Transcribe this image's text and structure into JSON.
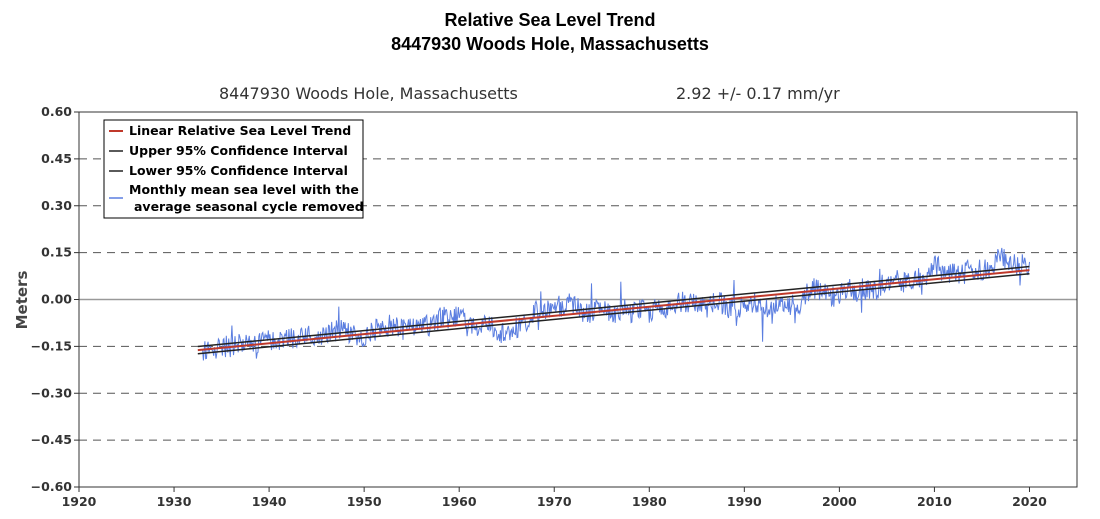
{
  "page_title_line1": "Relative Sea Level Trend",
  "page_title_line2": "8447930 Woods Hole, Massachusetts",
  "colors": {
    "trend": "#c0392b",
    "ci": "#222222",
    "monthly": "#5b7ee0",
    "zero": "#999999",
    "grid": "#555555"
  },
  "chart_data": {
    "type": "line",
    "subtitle_station": "8447930 Woods Hole, Massachusetts",
    "subtitle_rate": "2.92 +/-  0.17 mm/yr",
    "ylabel": "Meters",
    "xlabel": "",
    "xlim": [
      1920,
      2025
    ],
    "ylim": [
      -0.6,
      0.6
    ],
    "x_ticks": [
      "1920",
      "1930",
      "1940",
      "1950",
      "1960",
      "1970",
      "1980",
      "1990",
      "2000",
      "2010",
      "2020"
    ],
    "y_ticks": [
      "0.60",
      "0.45",
      "0.30",
      "0.15",
      "0.00",
      "-0.15",
      "-0.30",
      "-0.45",
      "-0.60"
    ],
    "grid": "dashed horizontal",
    "legend_position": "top-left",
    "legend": [
      "Linear Relative Sea Level Trend",
      "Upper 95% Confidence Interval",
      "Lower 95% Confidence Interval",
      "Monthly mean sea level with the",
      "average seasonal cycle removed"
    ],
    "trend": {
      "start_year": 1932.5,
      "end_year": 2020.0,
      "start_value": -0.162,
      "end_value": 0.094,
      "rate_mm_per_yr": 2.92,
      "ci_mm_per_yr": 0.17
    },
    "monthly_series": {
      "name": "Monthly mean sea level with the average seasonal cycle removed",
      "x_annual": [
        1933,
        1934,
        1935,
        1936,
        1937,
        1938,
        1939,
        1940,
        1941,
        1942,
        1943,
        1944,
        1945,
        1946,
        1947,
        1948,
        1949,
        1950,
        1951,
        1952,
        1953,
        1954,
        1955,
        1956,
        1957,
        1958,
        1959,
        1960,
        1961,
        1962,
        1963,
        1964,
        1965,
        1966,
        1967,
        1968,
        1969,
        1970,
        1971,
        1972,
        1973,
        1974,
        1975,
        1976,
        1977,
        1978,
        1979,
        1980,
        1981,
        1982,
        1983,
        1984,
        1985,
        1986,
        1987,
        1988,
        1989,
        1990,
        1991,
        1992,
        1993,
        1994,
        1995,
        1996,
        1997,
        1998,
        1999,
        2000,
        2001,
        2002,
        2003,
        2004,
        2005,
        2006,
        2007,
        2008,
        2009,
        2010,
        2011,
        2012,
        2013,
        2014,
        2015,
        2016,
        2017,
        2018,
        2019,
        2020
      ],
      "y_annual": [
        -0.16,
        -0.17,
        -0.15,
        -0.15,
        -0.14,
        -0.13,
        -0.14,
        -0.13,
        -0.13,
        -0.12,
        -0.13,
        -0.11,
        -0.12,
        -0.11,
        -0.1,
        -0.1,
        -0.11,
        -0.13,
        -0.1,
        -0.09,
        -0.08,
        -0.1,
        -0.09,
        -0.09,
        -0.08,
        -0.06,
        -0.07,
        -0.05,
        -0.09,
        -0.08,
        -0.07,
        -0.1,
        -0.11,
        -0.09,
        -0.07,
        -0.04,
        -0.03,
        -0.02,
        -0.02,
        -0.01,
        -0.04,
        -0.04,
        -0.03,
        -0.05,
        -0.03,
        -0.04,
        -0.03,
        -0.04,
        -0.02,
        -0.03,
        -0.01,
        -0.01,
        -0.02,
        -0.03,
        0.0,
        -0.02,
        -0.03,
        -0.02,
        -0.01,
        -0.04,
        -0.02,
        -0.01,
        -0.02,
        -0.01,
        0.04,
        0.03,
        0.01,
        0.01,
        0.04,
        0.02,
        0.03,
        0.03,
        0.06,
        0.06,
        0.05,
        0.07,
        0.07,
        0.12,
        0.08,
        0.09,
        0.08,
        0.1,
        0.09,
        0.1,
        0.14,
        0.12,
        0.11,
        0.12
      ]
    }
  }
}
